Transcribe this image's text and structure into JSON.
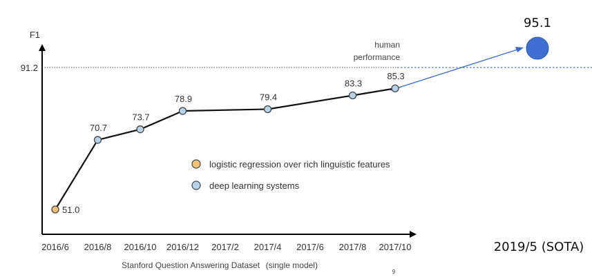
{
  "chart_data": {
    "type": "line",
    "ylabel": "F1",
    "xlabel": "Stanford Question Answering Dataset",
    "xlabel_note": "(single model)",
    "categories": [
      "2016/6",
      "2016/8",
      "2016/10",
      "2016/12",
      "2017/2",
      "2017/4",
      "2017/6",
      "2017/8",
      "2017/10"
    ],
    "ylim": [
      45,
      97
    ],
    "points": [
      {
        "cat": 0,
        "value": 51.0,
        "label": "51.0",
        "series": "logistic"
      },
      {
        "cat": 1,
        "value": 70.7,
        "label": "70.7",
        "series": "deep"
      },
      {
        "cat": 2,
        "value": 73.7,
        "label": "73.7",
        "series": "deep"
      },
      {
        "cat": 3,
        "value": 78.9,
        "label": "78.9",
        "series": "deep"
      },
      {
        "cat": 5,
        "value": 79.4,
        "label": "79.4",
        "series": "deep"
      },
      {
        "cat": 7,
        "value": 83.3,
        "label": "83.3",
        "series": "deep"
      },
      {
        "cat": 8,
        "value": 85.3,
        "label": "85.3",
        "series": "deep"
      }
    ],
    "human": {
      "value": 91.2,
      "label": "91.2",
      "text_line1": "human",
      "text_line2": "performance"
    },
    "sota": {
      "value": 95.1,
      "label": "95.1",
      "date": "2019/5 (SOTA)"
    },
    "legend": [
      {
        "key": "logistic",
        "label": "logistic regression over rich linguistic features",
        "color": "#f2c27a"
      },
      {
        "key": "deep",
        "label": "deep learning systems",
        "color": "#b7d3ea"
      }
    ],
    "colors": {
      "sota": "#3f6fd0",
      "arrow": "#3a68c4",
      "line": "#111111"
    }
  },
  "page_number": "9"
}
